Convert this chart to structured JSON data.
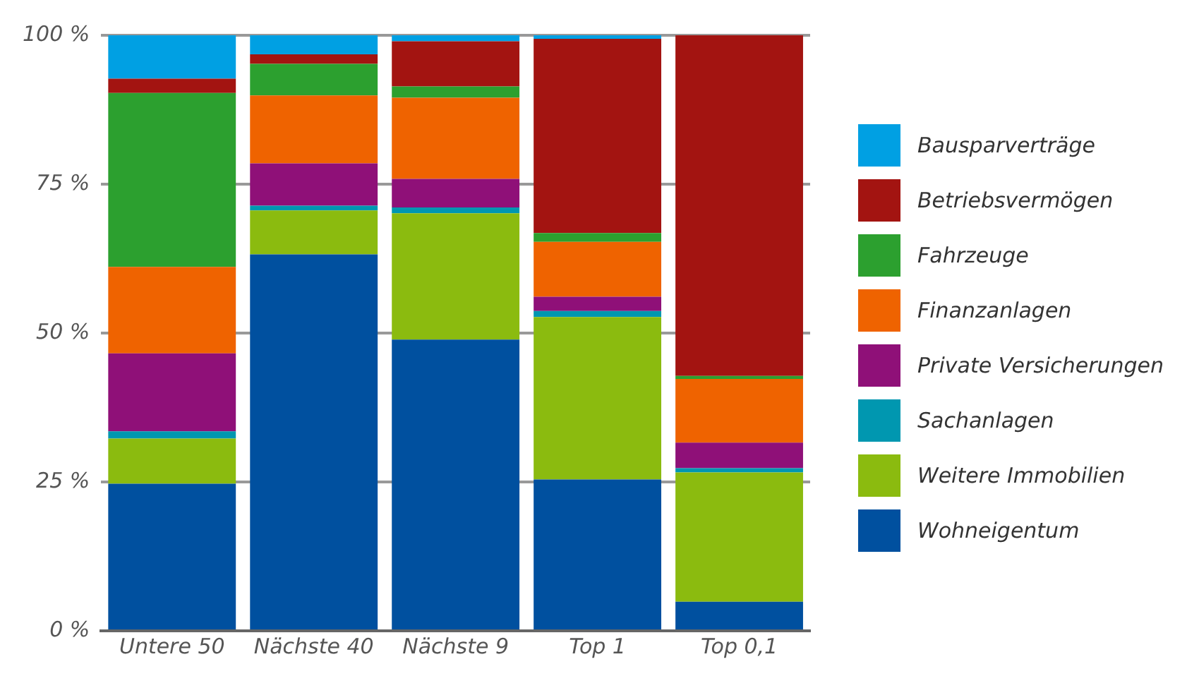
{
  "chart_data": {
    "type": "bar",
    "stacked": true,
    "categories": [
      "Untere 50",
      "Nächste 40",
      "Nächste 9",
      "Top 1",
      "Top 0,1"
    ],
    "series": [
      {
        "name": "Wohneigentum",
        "color": "#00509f",
        "values": [
          24.7,
          63.2,
          48.9,
          25.4,
          4.9
        ]
      },
      {
        "name": "Weitere Immobilien",
        "color": "#8bbb0f",
        "values": [
          7.6,
          7.4,
          21.2,
          27.3,
          21.7
        ]
      },
      {
        "name": "Sachanlagen",
        "color": "#0097b0",
        "values": [
          1.2,
          0.8,
          1.0,
          1.0,
          0.7
        ]
      },
      {
        "name": "Private Versicherungen",
        "color": "#8f1078",
        "values": [
          13.1,
          7.1,
          4.8,
          2.4,
          4.3
        ]
      },
      {
        "name": "Finanzanlagen",
        "color": "#ef6300",
        "values": [
          14.5,
          11.4,
          13.6,
          9.2,
          10.7
        ]
      },
      {
        "name": "Fahrzeuge",
        "color": "#2ca02f",
        "values": [
          29.2,
          5.3,
          1.9,
          1.5,
          0.5
        ]
      },
      {
        "name": "Betriebsvermögen",
        "color": "#a31411",
        "values": [
          2.4,
          1.6,
          7.6,
          32.6,
          57.2
        ]
      },
      {
        "name": "Bausparverträge",
        "color": "#00a0e3",
        "values": [
          7.3,
          3.2,
          1.0,
          0.6,
          0
        ]
      }
    ],
    "ylim": [
      0,
      100
    ],
    "yticks": [
      {
        "value": 0,
        "label": "0 %"
      },
      {
        "value": 25,
        "label": "25 %"
      },
      {
        "value": 50,
        "label": "50 %"
      },
      {
        "value": 75,
        "label": "75 %"
      },
      {
        "value": 100,
        "label": "100 %"
      }
    ],
    "grid": "y",
    "legend": "right"
  }
}
